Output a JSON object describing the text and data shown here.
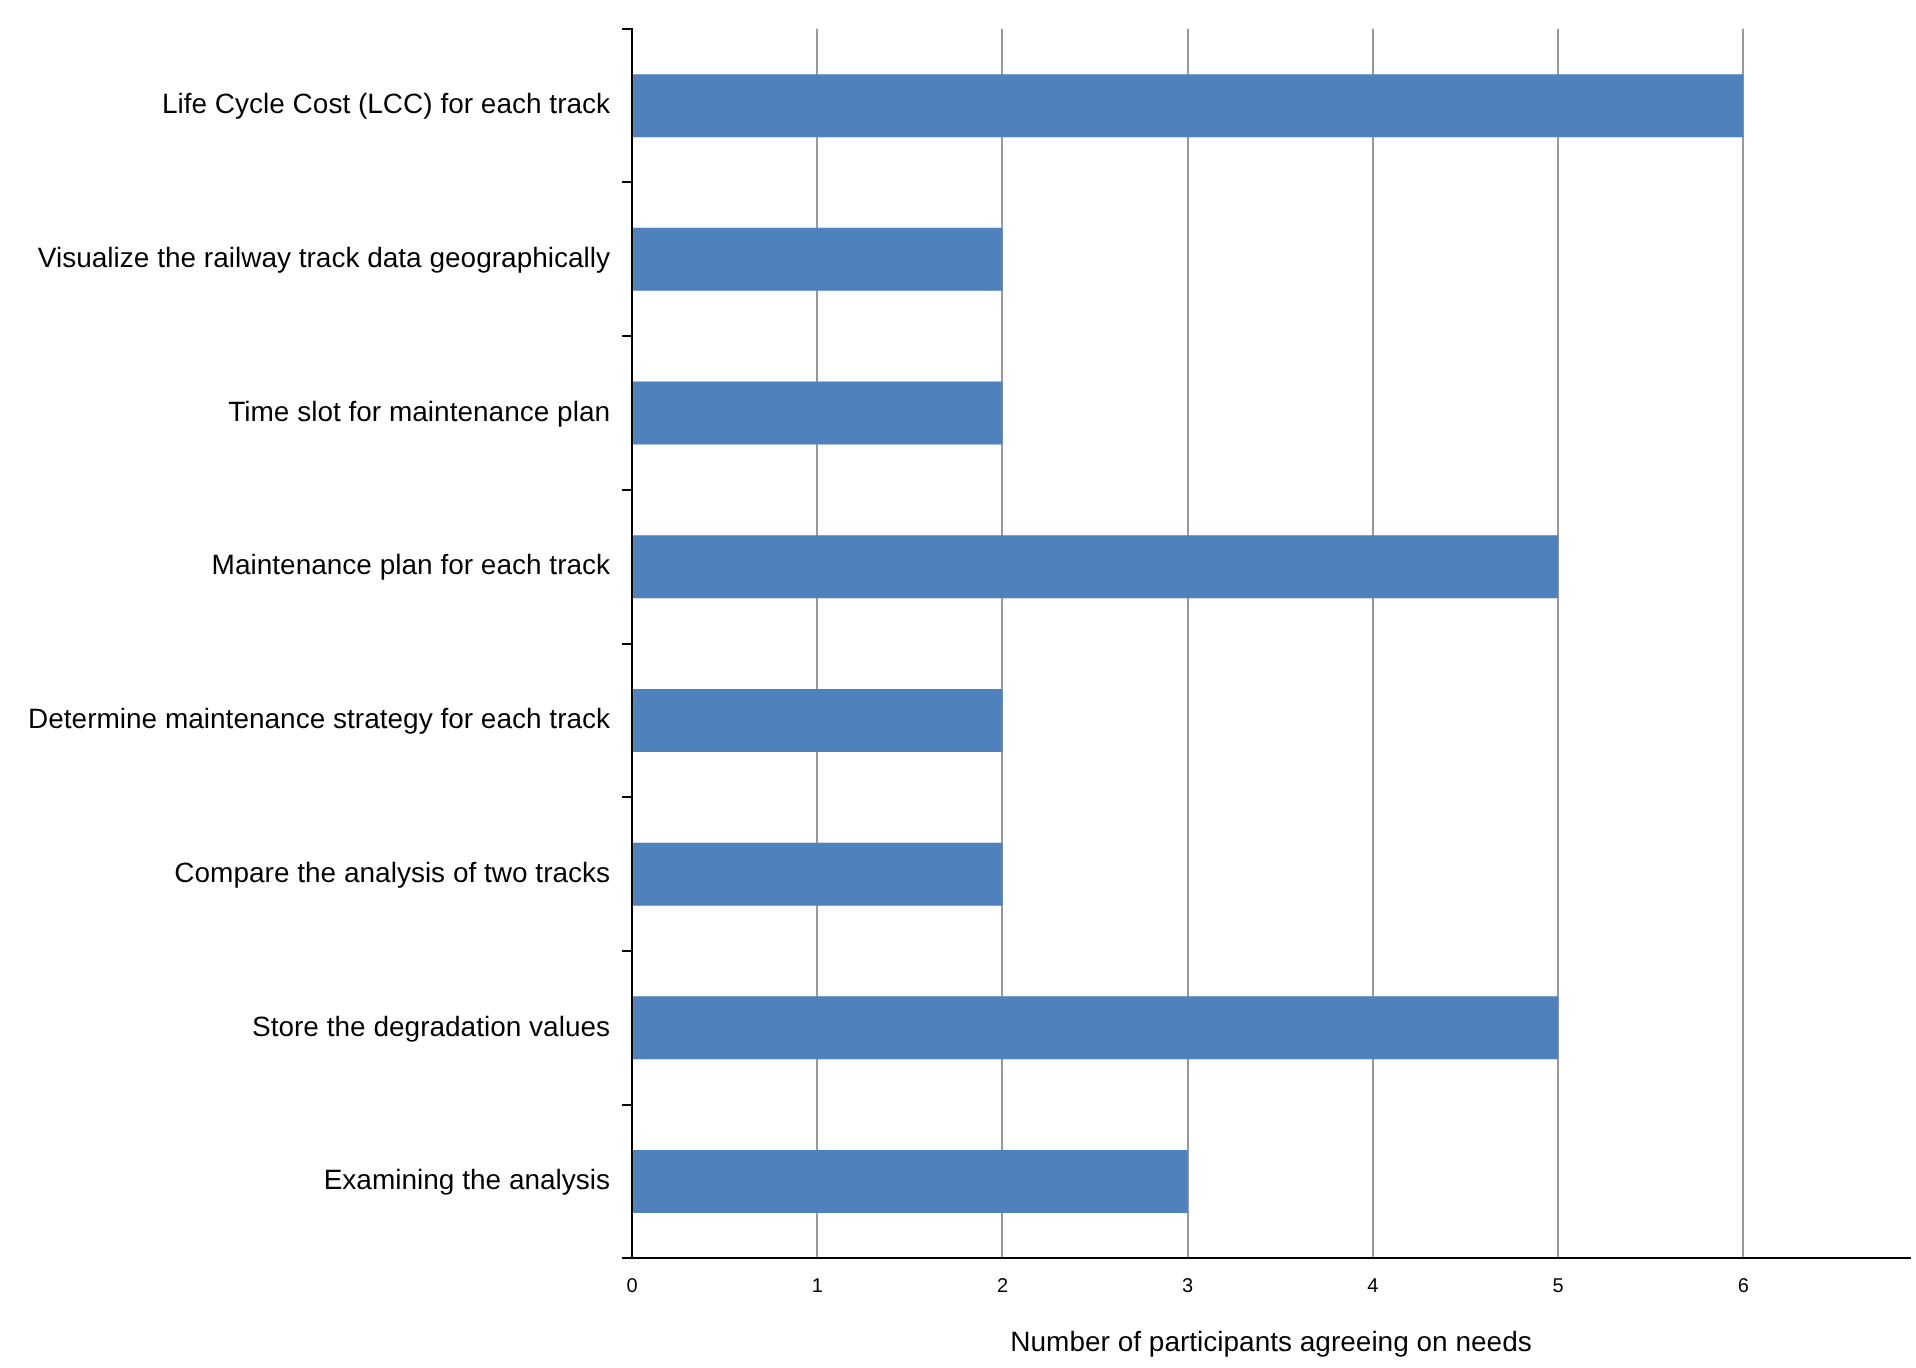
{
  "chart_data": {
    "type": "bar",
    "orientation": "horizontal",
    "categories": [
      "Life Cycle Cost (LCC) for each track",
      "Visualize the railway track data geographically",
      "Time slot for maintenance plan",
      "Maintenance plan for each track",
      "Determine maintenance strategy for each track",
      "Compare the analysis of two tracks",
      "Store the degradation values",
      "Examining the analysis"
    ],
    "values": [
      6,
      2,
      2,
      5,
      2,
      2,
      5,
      3
    ],
    "color": "#4f81bd",
    "xlabel": "Number of participants agreeing on needs",
    "xlim": [
      0,
      6.9
    ],
    "xticks": [
      0,
      1,
      2,
      3,
      4,
      5,
      6
    ],
    "grid": "x",
    "legend": false
  }
}
